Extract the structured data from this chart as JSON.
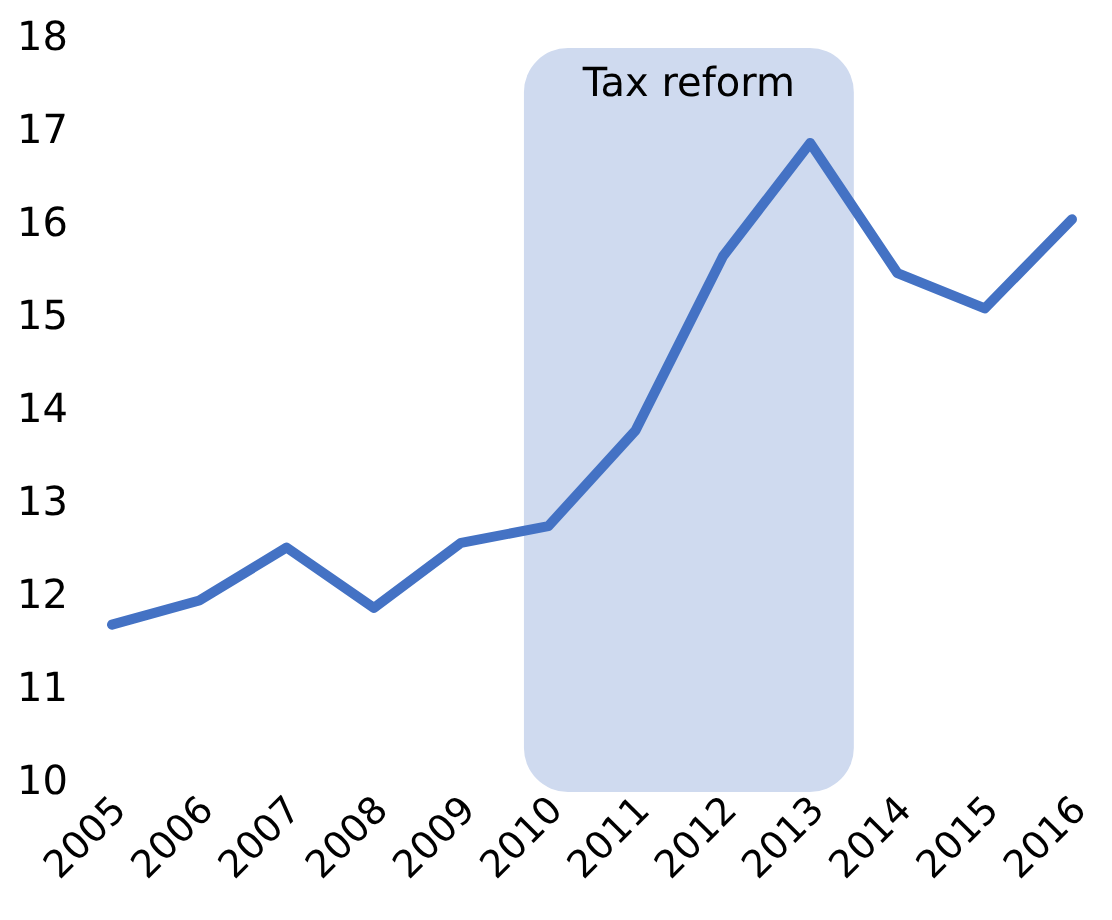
{
  "chart_data": {
    "type": "line",
    "categories": [
      "2005",
      "2006",
      "2007",
      "2008",
      "2009",
      "2010",
      "2011",
      "2012",
      "2013",
      "2014",
      "2015",
      "2016"
    ],
    "series": [
      {
        "color": "#4472c4",
        "values": [
          11.67,
          11.93,
          12.5,
          11.85,
          12.55,
          12.73,
          13.76,
          15.63,
          16.85,
          15.45,
          15.07,
          16.03
        ]
      }
    ],
    "ylim": [
      10,
      18
    ],
    "yticks": [
      10,
      11,
      12,
      13,
      14,
      15,
      16,
      17,
      18
    ],
    "grid": false,
    "bands": [
      {
        "axis": "x",
        "from": "2010",
        "to": "2013",
        "label": "Tax reform",
        "color": "#cfdaef"
      }
    ]
  }
}
